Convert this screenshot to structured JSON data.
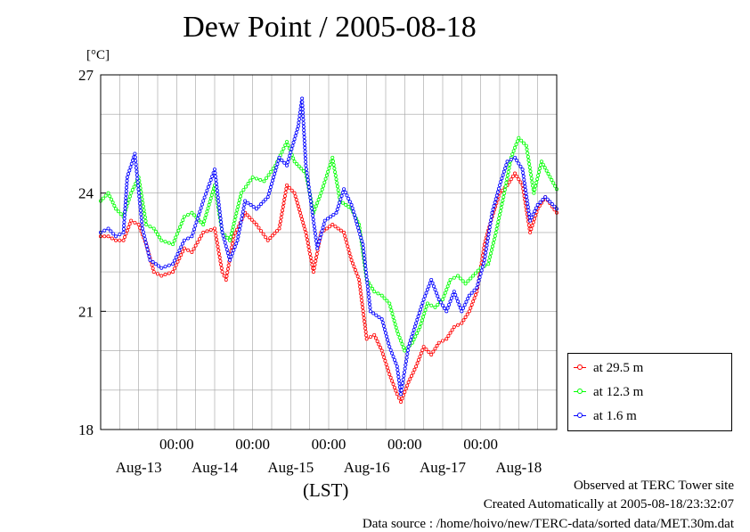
{
  "chart_data": {
    "type": "line",
    "title": "Dew Point / 2005-08-18",
    "ylabel": "[°C]",
    "xlabel": "(LST)",
    "ylim": [
      18,
      27
    ],
    "yticks": [
      "27",
      "24",
      "21",
      "18"
    ],
    "x_time_labels": [
      "00:00",
      "00:00",
      "00:00",
      "00:00",
      "00:00"
    ],
    "x_date_labels": [
      "Aug-13",
      "Aug-14",
      "Aug-15",
      "Aug-16",
      "Aug-17",
      "Aug-18"
    ],
    "x_range_days": [
      0,
      6
    ],
    "grid": true,
    "legend_position": "bottom-right",
    "series": [
      {
        "name": "at 29.5 m",
        "color": "#ff0000",
        "points": [
          [
            0.0,
            22.9
          ],
          [
            0.1,
            22.9
          ],
          [
            0.2,
            22.8
          ],
          [
            0.3,
            22.8
          ],
          [
            0.4,
            23.3
          ],
          [
            0.5,
            23.2
          ],
          [
            0.6,
            22.7
          ],
          [
            0.7,
            22.0
          ],
          [
            0.8,
            21.9
          ],
          [
            0.95,
            22.0
          ],
          [
            1.1,
            22.6
          ],
          [
            1.2,
            22.5
          ],
          [
            1.35,
            23.0
          ],
          [
            1.5,
            23.1
          ],
          [
            1.6,
            22.0
          ],
          [
            1.65,
            21.8
          ],
          [
            1.75,
            22.9
          ],
          [
            1.9,
            23.5
          ],
          [
            2.05,
            23.2
          ],
          [
            2.2,
            22.8
          ],
          [
            2.35,
            23.1
          ],
          [
            2.45,
            24.2
          ],
          [
            2.55,
            24.0
          ],
          [
            2.7,
            23.0
          ],
          [
            2.8,
            22.0
          ],
          [
            2.9,
            23.0
          ],
          [
            3.05,
            23.2
          ],
          [
            3.2,
            23.0
          ],
          [
            3.3,
            22.3
          ],
          [
            3.4,
            21.8
          ],
          [
            3.5,
            20.3
          ],
          [
            3.6,
            20.4
          ],
          [
            3.7,
            20.0
          ],
          [
            3.8,
            19.4
          ],
          [
            3.9,
            18.9
          ],
          [
            3.95,
            18.7
          ],
          [
            4.05,
            19.2
          ],
          [
            4.15,
            19.6
          ],
          [
            4.25,
            20.1
          ],
          [
            4.35,
            19.9
          ],
          [
            4.45,
            20.2
          ],
          [
            4.55,
            20.3
          ],
          [
            4.65,
            20.6
          ],
          [
            4.75,
            20.7
          ],
          [
            4.85,
            21.0
          ],
          [
            4.95,
            21.5
          ],
          [
            5.05,
            22.7
          ],
          [
            5.15,
            23.4
          ],
          [
            5.25,
            24.0
          ],
          [
            5.35,
            24.2
          ],
          [
            5.45,
            24.5
          ],
          [
            5.55,
            24.2
          ],
          [
            5.65,
            23.0
          ],
          [
            5.75,
            23.6
          ],
          [
            5.85,
            23.9
          ],
          [
            6.0,
            23.5
          ]
        ]
      },
      {
        "name": "at 12.3 m",
        "color": "#00ff00",
        "points": [
          [
            0.0,
            23.8
          ],
          [
            0.1,
            24.0
          ],
          [
            0.2,
            23.6
          ],
          [
            0.3,
            23.4
          ],
          [
            0.4,
            24.0
          ],
          [
            0.5,
            24.4
          ],
          [
            0.6,
            23.2
          ],
          [
            0.7,
            23.1
          ],
          [
            0.8,
            22.8
          ],
          [
            0.95,
            22.7
          ],
          [
            1.1,
            23.4
          ],
          [
            1.2,
            23.5
          ],
          [
            1.35,
            23.2
          ],
          [
            1.5,
            24.2
          ],
          [
            1.6,
            23.0
          ],
          [
            1.7,
            22.8
          ],
          [
            1.85,
            24.0
          ],
          [
            2.0,
            24.4
          ],
          [
            2.15,
            24.3
          ],
          [
            2.3,
            24.7
          ],
          [
            2.45,
            25.3
          ],
          [
            2.55,
            24.8
          ],
          [
            2.7,
            24.5
          ],
          [
            2.8,
            23.5
          ],
          [
            2.9,
            24.0
          ],
          [
            3.05,
            24.9
          ],
          [
            3.15,
            23.8
          ],
          [
            3.3,
            23.6
          ],
          [
            3.4,
            23.2
          ],
          [
            3.5,
            21.8
          ],
          [
            3.6,
            21.5
          ],
          [
            3.7,
            21.4
          ],
          [
            3.8,
            21.2
          ],
          [
            3.9,
            20.5
          ],
          [
            4.0,
            20.0
          ],
          [
            4.1,
            20.2
          ],
          [
            4.2,
            20.6
          ],
          [
            4.3,
            21.2
          ],
          [
            4.4,
            21.1
          ],
          [
            4.5,
            21.3
          ],
          [
            4.6,
            21.8
          ],
          [
            4.7,
            21.9
          ],
          [
            4.8,
            21.7
          ],
          [
            4.9,
            21.9
          ],
          [
            5.0,
            22.1
          ],
          [
            5.1,
            22.2
          ],
          [
            5.2,
            23.0
          ],
          [
            5.3,
            23.9
          ],
          [
            5.4,
            24.9
          ],
          [
            5.5,
            25.4
          ],
          [
            5.6,
            25.2
          ],
          [
            5.7,
            24.0
          ],
          [
            5.8,
            24.8
          ],
          [
            6.0,
            24.1
          ]
        ]
      },
      {
        "name": "at 1.6 m",
        "color": "#0000ff",
        "points": [
          [
            0.0,
            23.0
          ],
          [
            0.1,
            23.1
          ],
          [
            0.2,
            22.9
          ],
          [
            0.3,
            23.0
          ],
          [
            0.35,
            24.4
          ],
          [
            0.45,
            25.0
          ],
          [
            0.55,
            23.1
          ],
          [
            0.65,
            22.3
          ],
          [
            0.8,
            22.1
          ],
          [
            0.95,
            22.2
          ],
          [
            1.1,
            22.8
          ],
          [
            1.2,
            22.9
          ],
          [
            1.35,
            23.8
          ],
          [
            1.5,
            24.6
          ],
          [
            1.6,
            23.0
          ],
          [
            1.7,
            22.3
          ],
          [
            1.8,
            22.8
          ],
          [
            1.9,
            23.8
          ],
          [
            2.05,
            23.6
          ],
          [
            2.2,
            23.9
          ],
          [
            2.35,
            24.9
          ],
          [
            2.45,
            24.7
          ],
          [
            2.6,
            25.7
          ],
          [
            2.65,
            26.4
          ],
          [
            2.7,
            24.7
          ],
          [
            2.85,
            22.6
          ],
          [
            2.95,
            23.3
          ],
          [
            3.1,
            23.5
          ],
          [
            3.2,
            24.1
          ],
          [
            3.3,
            23.7
          ],
          [
            3.45,
            22.7
          ],
          [
            3.55,
            21.0
          ],
          [
            3.7,
            20.8
          ],
          [
            3.8,
            20.1
          ],
          [
            3.9,
            19.6
          ],
          [
            3.95,
            18.9
          ],
          [
            4.05,
            20.1
          ],
          [
            4.15,
            20.7
          ],
          [
            4.25,
            21.3
          ],
          [
            4.35,
            21.8
          ],
          [
            4.45,
            21.3
          ],
          [
            4.55,
            21.0
          ],
          [
            4.65,
            21.5
          ],
          [
            4.75,
            21.0
          ],
          [
            4.85,
            21.4
          ],
          [
            4.95,
            21.6
          ],
          [
            5.05,
            22.3
          ],
          [
            5.15,
            23.5
          ],
          [
            5.25,
            24.2
          ],
          [
            5.35,
            24.8
          ],
          [
            5.45,
            24.9
          ],
          [
            5.55,
            24.6
          ],
          [
            5.65,
            23.3
          ],
          [
            5.75,
            23.7
          ],
          [
            5.85,
            23.9
          ],
          [
            6.0,
            23.6
          ]
        ]
      }
    ]
  },
  "footer": {
    "observed": "Observed at TERC Tower site",
    "created": "Created Automatically at 2005-08-18/23:32:07",
    "source": "Data source : /home/hoivo/new/TERC-data/sorted  data/MET.30m.dat"
  }
}
